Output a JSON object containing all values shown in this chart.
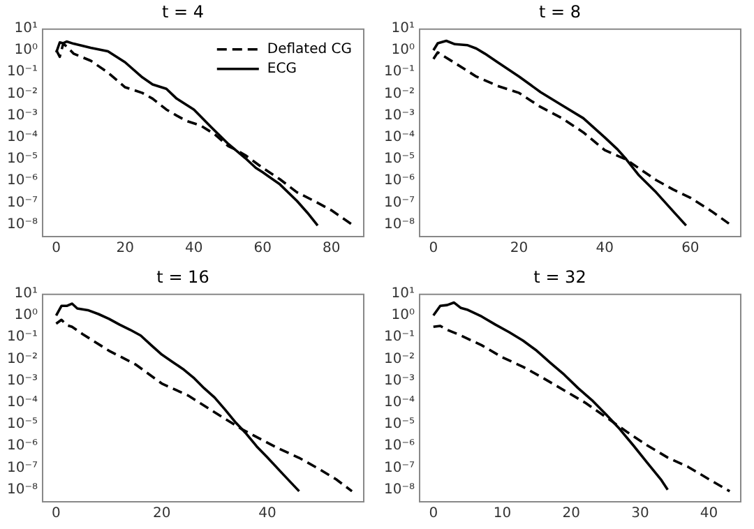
{
  "chart_data": [
    {
      "type": "line",
      "title": "t = 4",
      "log": "y",
      "legend": "top right",
      "marker": "none",
      "grid": false,
      "xlim": [
        -4.2,
        89.2
      ],
      "xticks": [
        0,
        20,
        40,
        60,
        80
      ],
      "ylim": [
        3e-09,
        10
      ],
      "yticks": [
        {
          "value": 10,
          "label": "10¹"
        },
        {
          "value": 1,
          "label": "10⁰"
        },
        {
          "value": 0.1,
          "label": "10⁻¹"
        },
        {
          "value": 0.01,
          "label": "10⁻²"
        },
        {
          "value": 0.001,
          "label": "10⁻³"
        },
        {
          "value": 0.0001,
          "label": "10⁻⁴"
        },
        {
          "value": 1e-05,
          "label": "10⁻⁵"
        },
        {
          "value": 1e-06,
          "label": "10⁻⁶"
        },
        {
          "value": 1e-07,
          "label": "10⁻⁷"
        },
        {
          "value": 1e-08,
          "label": "10⁻⁸"
        }
      ],
      "series": [
        {
          "name": "Deflated CG",
          "color": "#000000",
          "line_style": "dashed",
          "x": [
            0,
            1,
            2,
            3,
            5,
            10,
            15,
            20,
            25,
            28,
            32,
            35,
            38,
            42,
            46,
            50,
            52,
            55,
            60,
            65,
            70,
            75,
            80,
            86
          ],
          "values": [
            1.0,
            0.5,
            2,
            1.5,
            0.7,
            0.33,
            0.095,
            0.02,
            0.011,
            0.006,
            0.0019,
            0.001,
            0.00056,
            0.00035,
            0.00014,
            4e-05,
            2.8e-05,
            1.5e-05,
            4e-06,
            1.2e-06,
            3e-07,
            1.2e-07,
            4.5e-08,
            1e-08
          ]
        },
        {
          "name": "ECG",
          "color": "#000000",
          "line_style": "solid",
          "x": [
            0,
            1,
            2,
            3,
            5,
            10,
            15,
            20,
            25,
            28,
            32,
            35,
            40,
            45,
            50,
            55,
            58,
            60,
            65,
            70,
            73,
            76
          ],
          "values": [
            0.8,
            2.3,
            2.1,
            2.5,
            2,
            1.3,
            0.9,
            0.28,
            0.057,
            0.027,
            0.017,
            0.006,
            0.0019,
            0.0003,
            5e-05,
            1.1e-05,
            4e-06,
            2.5e-06,
            7e-07,
            1.2e-07,
            3.5e-08,
            9e-09
          ]
        }
      ]
    },
    {
      "type": "line",
      "title": "t = 8",
      "log": "y",
      "legend": false,
      "marker": "none",
      "grid": false,
      "xlim": [
        -3.4,
        71.6
      ],
      "xticks": [
        0,
        20,
        40,
        60
      ],
      "ylim": [
        3e-09,
        10
      ],
      "yticks": [
        {
          "value": 10,
          "label": "10¹"
        },
        {
          "value": 1,
          "label": "10⁰"
        },
        {
          "value": 0.1,
          "label": "10⁻¹"
        },
        {
          "value": 0.01,
          "label": "10⁻²"
        },
        {
          "value": 0.001,
          "label": "10⁻³"
        },
        {
          "value": 0.0001,
          "label": "10⁻⁴"
        },
        {
          "value": 1e-05,
          "label": "10⁻⁵"
        },
        {
          "value": 1e-06,
          "label": "10⁻⁶"
        },
        {
          "value": 1e-07,
          "label": "10⁻⁷"
        },
        {
          "value": 1e-08,
          "label": "10⁻⁸"
        }
      ],
      "series": [
        {
          "color": "#000000",
          "line_style": "dashed",
          "x": [
            0,
            1,
            2,
            5,
            10,
            15,
            20,
            25,
            30,
            35,
            40,
            45,
            48,
            52,
            56,
            60,
            65,
            69
          ],
          "values": [
            0.4,
            0.8,
            0.6,
            0.26,
            0.062,
            0.023,
            0.011,
            0.0025,
            0.00076,
            0.00017,
            2.6e-05,
            9.6e-06,
            3.8e-06,
            1.1e-06,
            4e-07,
            1.7e-07,
            4e-08,
            1.1e-08
          ]
        },
        {
          "color": "#000000",
          "line_style": "solid",
          "x": [
            0,
            1,
            3,
            5,
            8,
            10,
            12,
            15,
            20,
            25,
            30,
            35,
            40,
            43,
            45,
            48,
            52,
            56,
            59
          ],
          "values": [
            1,
            2.1,
            2.7,
            1.9,
            1.7,
            1.2,
            0.7,
            0.28,
            0.062,
            0.012,
            0.003,
            0.00076,
            0.0001,
            2.8e-05,
            1e-05,
            1.8e-06,
            3e-07,
            4e-08,
            9e-09
          ]
        }
      ]
    },
    {
      "type": "line",
      "title": "t = 16",
      "log": "y",
      "legend": false,
      "marker": "none",
      "grid": false,
      "xlim": [
        -2.7,
        58.1
      ],
      "xticks": [
        0,
        20,
        40
      ],
      "ylim": [
        3e-09,
        10
      ],
      "yticks": [
        {
          "value": 10,
          "label": "10¹"
        },
        {
          "value": 1,
          "label": "10⁰"
        },
        {
          "value": 0.1,
          "label": "10⁻¹"
        },
        {
          "value": 0.01,
          "label": "10⁻²"
        },
        {
          "value": 0.001,
          "label": "10⁻³"
        },
        {
          "value": 0.0001,
          "label": "10⁻⁴"
        },
        {
          "value": 1e-05,
          "label": "10⁻⁵"
        },
        {
          "value": 1e-06,
          "label": "10⁻⁶"
        },
        {
          "value": 1e-07,
          "label": "10⁻⁷"
        },
        {
          "value": 1e-08,
          "label": "10⁻⁸"
        }
      ],
      "series": [
        {
          "color": "#000000",
          "line_style": "dashed",
          "x": [
            0,
            1,
            2,
            3,
            5,
            10,
            15,
            20,
            25,
            30,
            35,
            38,
            42,
            46,
            50,
            53,
            56
          ],
          "values": [
            0.42,
            0.63,
            0.36,
            0.3,
            0.14,
            0.024,
            0.0057,
            0.00075,
            0.00021,
            3.6e-05,
            6.3e-06,
            2.6e-06,
            8e-07,
            2.9e-07,
            8.3e-08,
            3e-08,
            8.5e-09
          ]
        },
        {
          "color": "#000000",
          "line_style": "solid",
          "x": [
            0,
            1,
            2,
            3,
            4,
            6,
            8,
            10,
            12,
            14,
            16,
            18,
            20,
            22,
            24,
            26,
            28,
            30,
            32,
            34,
            36,
            38,
            40,
            43,
            46
          ],
          "values": [
            1,
            2.75,
            2.75,
            3.5,
            2.1,
            1.75,
            1.16,
            0.7,
            0.38,
            0.22,
            0.12,
            0.043,
            0.016,
            0.0074,
            0.0035,
            0.0014,
            0.00046,
            0.00017,
            4.7e-05,
            1.2e-05,
            3.7e-06,
            9.5e-07,
            3e-07,
            5e-08,
            8.5e-09
          ]
        }
      ]
    },
    {
      "type": "line",
      "title": "t = 32",
      "log": "y",
      "legend": false,
      "marker": "none",
      "grid": false,
      "xlim": [
        -2.1,
        44.5
      ],
      "xticks": [
        0,
        10,
        20,
        30,
        40
      ],
      "ylim": [
        3e-09,
        10
      ],
      "yticks": [
        {
          "value": 10,
          "label": "10¹"
        },
        {
          "value": 1,
          "label": "10⁰"
        },
        {
          "value": 0.1,
          "label": "10⁻¹"
        },
        {
          "value": 0.01,
          "label": "10⁻²"
        },
        {
          "value": 0.001,
          "label": "10⁻³"
        },
        {
          "value": 0.0001,
          "label": "10⁻⁴"
        },
        {
          "value": 1e-05,
          "label": "10⁻⁵"
        },
        {
          "value": 1e-06,
          "label": "10⁻⁶"
        },
        {
          "value": 1e-07,
          "label": "10⁻⁷"
        },
        {
          "value": 1e-08,
          "label": "10⁻⁸"
        }
      ],
      "series": [
        {
          "color": "#000000",
          "line_style": "dashed",
          "x": [
            0,
            1,
            2,
            4,
            7,
            10,
            13,
            16,
            19,
            22,
            25,
            28,
            31,
            34,
            37,
            40,
            43
          ],
          "values": [
            0.3,
            0.33,
            0.22,
            0.12,
            0.043,
            0.012,
            0.0044,
            0.0013,
            0.00036,
            0.0001,
            2.2e-05,
            4.7e-06,
            1.1e-06,
            3e-07,
            1.1e-07,
            3e-08,
            8.5e-09
          ]
        },
        {
          "color": "#000000",
          "line_style": "solid",
          "x": [
            0,
            1,
            2,
            3,
            4,
            5,
            7,
            9,
            11,
            13,
            15,
            17,
            19,
            21,
            23,
            25,
            27,
            29,
            31,
            33,
            34
          ],
          "values": [
            1,
            2.75,
            3,
            3.9,
            2.2,
            1.8,
            0.9,
            0.38,
            0.17,
            0.07,
            0.024,
            0.0066,
            0.0019,
            0.00046,
            0.00013,
            3e-05,
            6.3e-06,
            1.1e-06,
            1.8e-07,
            3e-08,
            1e-08
          ]
        }
      ]
    }
  ]
}
